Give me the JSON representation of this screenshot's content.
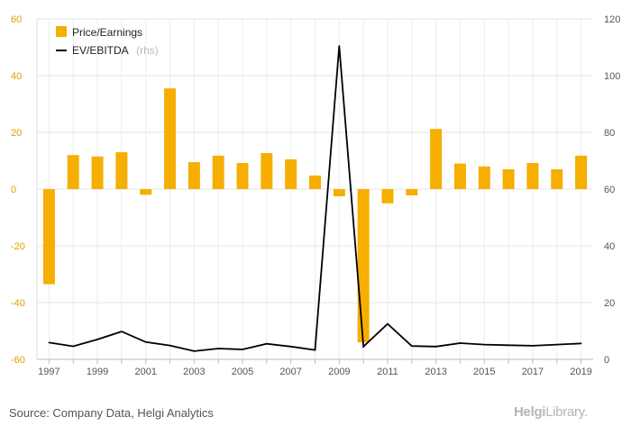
{
  "chart_data": {
    "type": "bar",
    "x": [
      "1997",
      "1998",
      "1999",
      "2000",
      "2001",
      "2002",
      "2003",
      "2004",
      "2005",
      "2006",
      "2007",
      "2008",
      "2009",
      "2010",
      "2011",
      "2012",
      "2013",
      "2014",
      "2015",
      "2016",
      "2017",
      "2018",
      "2019"
    ],
    "x_tick_labels": [
      "1997",
      "1999",
      "2001",
      "2003",
      "2005",
      "2007",
      "2009",
      "2011",
      "2013",
      "2015",
      "2017",
      "2019"
    ],
    "series": [
      {
        "name": "Price/Earnings",
        "kind": "bar",
        "axis": "left",
        "color": "#f6ae00",
        "values": [
          -33.5,
          12,
          11.5,
          13,
          -2,
          35.5,
          9.5,
          11.8,
          9.2,
          12.7,
          10.5,
          4.8,
          -2.5,
          -54,
          -5,
          -2.2,
          21.2,
          9,
          8,
          7,
          9.2,
          7,
          11.8
        ]
      },
      {
        "name": "EV/EBITDA",
        "kind": "line",
        "axis": "right",
        "color": "#000000",
        "values": [
          5.9,
          4.6,
          7,
          9.8,
          6.1,
          4.9,
          2.9,
          3.8,
          3.5,
          5.5,
          4.5,
          3.3,
          110.5,
          4.5,
          12.5,
          4.7,
          4.5,
          5.7,
          5.2,
          5,
          4.8,
          5.2,
          5.6
        ]
      }
    ],
    "y_left": {
      "ticks": [
        "60",
        "40",
        "20",
        "0",
        "-20",
        "-40",
        "-60"
      ],
      "range": [
        -60,
        60
      ]
    },
    "y_right": {
      "ticks": [
        "120",
        "100",
        "80",
        "60",
        "40",
        "20",
        "0"
      ],
      "range": [
        0,
        120
      ]
    },
    "legend": {
      "position": "top-left",
      "items": [
        "Price/Earnings",
        "EV/EBITDA"
      ],
      "rhs_note": "(rhs)"
    },
    "grid": true
  },
  "source": "Source: Company Data, Helgi Analytics",
  "logo": {
    "bold": "Helgi",
    "light": "Library."
  }
}
